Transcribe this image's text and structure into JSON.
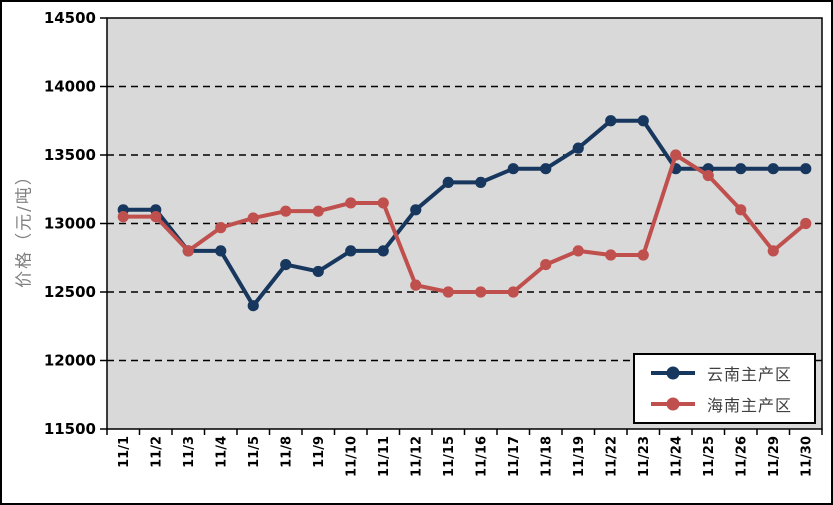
{
  "chart_data": {
    "type": "line",
    "title": "",
    "xlabel": "",
    "ylabel": "价格（元/吨）",
    "ylim": [
      11500,
      14500
    ],
    "ytick_interval": 500,
    "yticks": [
      14500,
      14000,
      13500,
      13000,
      12500,
      12000,
      11500
    ],
    "grid": "horizontal-dashed",
    "plot_background": "#d9d9d9",
    "axis_color": "#000000",
    "ylabel_color": "#7f7f7f",
    "legend_position": "bottom-right",
    "categories": [
      "11/1",
      "11/2",
      "11/3",
      "11/4",
      "11/5",
      "11/8",
      "11/9",
      "11/10",
      "11/11",
      "11/12",
      "11/15",
      "11/16",
      "11/17",
      "11/18",
      "11/19",
      "11/22",
      "11/23",
      "11/24",
      "11/25",
      "11/26",
      "11/29",
      "11/30"
    ],
    "series": [
      {
        "name": "云南主产区",
        "color": "#17375e",
        "values": [
          13100,
          13100,
          12800,
          12800,
          12400,
          12700,
          12650,
          12800,
          12800,
          13100,
          13300,
          13300,
          13400,
          13400,
          13550,
          13750,
          13750,
          13400,
          13400,
          13400,
          13400,
          13400
        ]
      },
      {
        "name": "海南主产区",
        "color": "#c0504d",
        "values": [
          13050,
          13050,
          12800,
          12970,
          13040,
          13090,
          13090,
          13150,
          13150,
          12550,
          12500,
          12500,
          12500,
          12700,
          12800,
          12770,
          12770,
          13500,
          13350,
          13100,
          12800,
          13000
        ]
      }
    ]
  }
}
